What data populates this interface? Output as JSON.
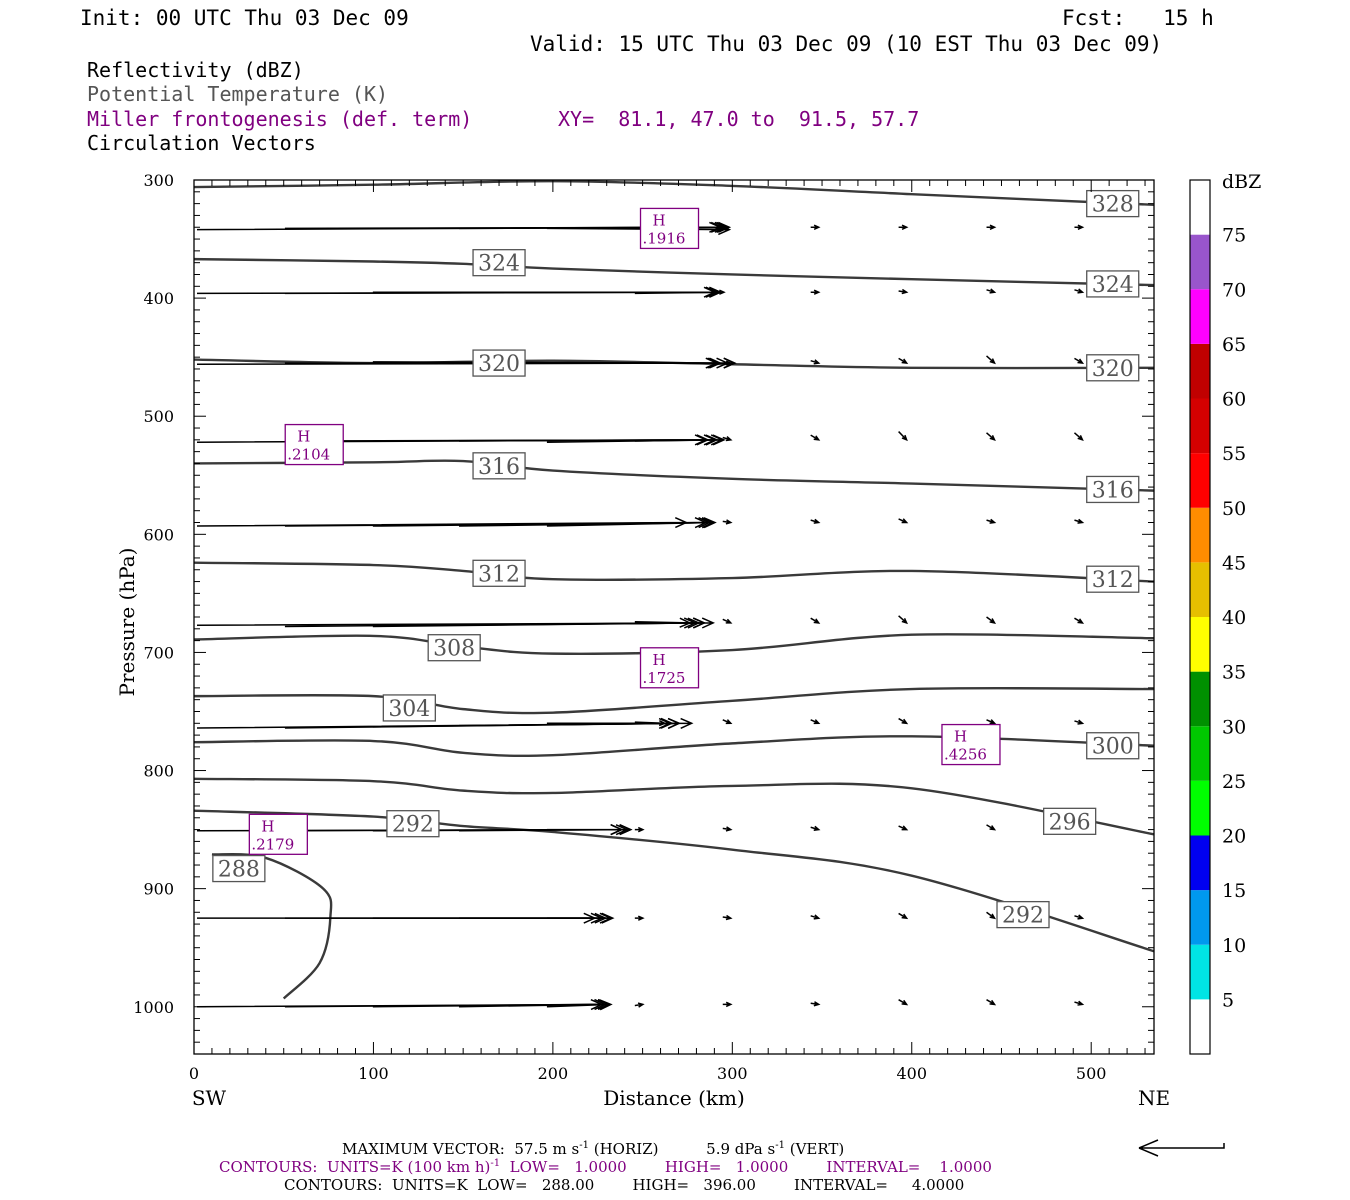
{
  "header": {
    "init": "Init: 00 UTC Thu 03 Dec 09",
    "fcst": "Fcst:   15 h",
    "valid": "Valid: 15 UTC Thu 03 Dec 09 (10 EST Thu 03 Dec 09)"
  },
  "legend": {
    "reflectivity": "Reflectivity (dBZ)",
    "potential_temperature": "Potential Temperature (K)",
    "frontogenesis": "Miller frontogenesis (def. term)",
    "xy": "XY=  81.1, 47.0 to  91.5, 57.7",
    "vectors": "Circulation Vectors"
  },
  "colors": {
    "theta_contour": "#3a3a3a",
    "frontogenesis": "#800080",
    "axis": "#000000"
  },
  "chart_data": {
    "type": "line",
    "xlabel": "Distance (km)",
    "ylabel": "Pressure (hPa)",
    "x_ticks": [
      "0",
      "100",
      "200",
      "300",
      "400",
      "500"
    ],
    "y_ticks": [
      "300",
      "400",
      "500",
      "600",
      "700",
      "800",
      "900",
      "1000"
    ],
    "xlim": [
      0,
      535
    ],
    "ylim": [
      1040,
      300
    ],
    "left_end_label": "SW",
    "right_end_label": "NE",
    "colorbar": {
      "title": "dBZ",
      "labels": [
        "5",
        "10",
        "15",
        "20",
        "25",
        "30",
        "35",
        "40",
        "45",
        "50",
        "55",
        "60",
        "65",
        "70",
        "75"
      ],
      "colors": [
        "#ffffff",
        "#00e5e5",
        "#0099ee",
        "#0000f0",
        "#00ff00",
        "#00c800",
        "#009000",
        "#ffff00",
        "#e6bf00",
        "#ff8c00",
        "#ff0000",
        "#d40000",
        "#c00000",
        "#ff00ff",
        "#9955cc",
        "#ffffff"
      ]
    },
    "theta_contours": [
      {
        "value": 328,
        "points": [
          [
            0,
            306
          ],
          [
            100,
            304
          ],
          [
            200,
            301
          ],
          [
            300,
            305
          ],
          [
            400,
            312
          ],
          [
            535,
            321
          ]
        ]
      },
      {
        "value": 324,
        "points": [
          [
            0,
            367
          ],
          [
            100,
            369
          ],
          [
            150,
            371
          ],
          [
            200,
            375
          ],
          [
            300,
            380
          ],
          [
            400,
            384
          ],
          [
            535,
            389
          ]
        ]
      },
      {
        "value": 320,
        "points": [
          [
            0,
            452
          ],
          [
            100,
            455
          ],
          [
            200,
            453
          ],
          [
            300,
            456
          ],
          [
            400,
            459
          ],
          [
            535,
            459
          ]
        ]
      },
      {
        "value": 316,
        "points": [
          [
            0,
            540
          ],
          [
            100,
            539
          ],
          [
            150,
            538
          ],
          [
            200,
            546
          ],
          [
            300,
            553
          ],
          [
            400,
            557
          ],
          [
            535,
            563
          ]
        ]
      },
      {
        "value": 312,
        "points": [
          [
            0,
            624
          ],
          [
            100,
            626
          ],
          [
            150,
            631
          ],
          [
            200,
            638
          ],
          [
            300,
            637
          ],
          [
            400,
            631
          ],
          [
            535,
            640
          ]
        ]
      },
      {
        "value": 308,
        "points": [
          [
            0,
            689
          ],
          [
            100,
            686
          ],
          [
            150,
            695
          ],
          [
            200,
            701
          ],
          [
            300,
            698
          ],
          [
            400,
            685
          ],
          [
            535,
            688
          ]
        ]
      },
      {
        "value": 304,
        "points": [
          [
            0,
            737
          ],
          [
            100,
            737
          ],
          [
            150,
            748
          ],
          [
            200,
            751
          ],
          [
            300,
            741
          ],
          [
            400,
            731
          ],
          [
            535,
            731
          ]
        ]
      },
      {
        "value": 300,
        "points": [
          [
            0,
            776
          ],
          [
            100,
            775
          ],
          [
            150,
            785
          ],
          [
            200,
            787
          ],
          [
            300,
            777
          ],
          [
            400,
            771
          ],
          [
            535,
            779
          ]
        ]
      },
      {
        "value": 296,
        "points": [
          [
            0,
            807
          ],
          [
            100,
            809
          ],
          [
            150,
            817
          ],
          [
            200,
            819
          ],
          [
            300,
            813
          ],
          [
            400,
            815
          ],
          [
            535,
            854
          ]
        ]
      },
      {
        "value": 292,
        "points": [
          [
            0,
            834
          ],
          [
            100,
            839
          ],
          [
            150,
            847
          ],
          [
            200,
            852
          ],
          [
            300,
            867
          ],
          [
            400,
            889
          ],
          [
            535,
            953
          ]
        ]
      },
      {
        "value": 288,
        "points": [
          [
            10,
            871
          ],
          [
            40,
            874
          ],
          [
            72,
            900
          ],
          [
            76,
            924
          ],
          [
            70,
            963
          ],
          [
            50,
            993
          ]
        ]
      }
    ],
    "contour_labels": [
      {
        "text": "328",
        "x": 512,
        "p": 320
      },
      {
        "text": "324",
        "x": 170,
        "p": 370
      },
      {
        "text": "324",
        "x": 512,
        "p": 388
      },
      {
        "text": "320",
        "x": 170,
        "p": 455
      },
      {
        "text": "320",
        "x": 512,
        "p": 459
      },
      {
        "text": "316",
        "x": 170,
        "p": 542
      },
      {
        "text": "316",
        "x": 512,
        "p": 562
      },
      {
        "text": "312",
        "x": 170,
        "p": 633
      },
      {
        "text": "312",
        "x": 512,
        "p": 638
      },
      {
        "text": "308",
        "x": 145,
        "p": 696
      },
      {
        "text": "304",
        "x": 120,
        "p": 747
      },
      {
        "text": "300",
        "x": 512,
        "p": 779
      },
      {
        "text": "296",
        "x": 488,
        "p": 843
      },
      {
        "text": "292",
        "x": 122,
        "p": 845
      },
      {
        "text": "292",
        "x": 462,
        "p": 922
      },
      {
        "text": "288",
        "x": 25,
        "p": 883
      }
    ],
    "frontogenesis_maxima": [
      {
        "label": "H",
        "value": ".1916",
        "x": 265,
        "p": 341
      },
      {
        "label": "H",
        "value": ".2104",
        "x": 67,
        "p": 524
      },
      {
        "label": "H",
        "value": ".1725",
        "x": 265,
        "p": 713
      },
      {
        "label": "H",
        "value": ".4256",
        "x": 433,
        "p": 778
      },
      {
        "label": "H",
        "value": ".2179",
        "x": 47,
        "p": 854
      }
    ],
    "circulation_vectors": [
      {
        "p": 342,
        "items": [
          [
            0,
            300,
            342,
            340
          ],
          [
            49,
            298,
            341,
            340
          ],
          [
            98,
            296,
            341,
            340
          ],
          [
            146,
            295,
            341,
            340
          ],
          [
            195,
            300,
            341,
            342
          ],
          [
            244,
            299,
            341,
            340
          ],
          [
            293,
            297,
            340,
            340
          ],
          [
            342,
            293,
            340,
            340
          ],
          [
            391,
            294,
            340,
            340
          ],
          [
            440,
            293,
            340,
            340
          ],
          [
            489,
            295,
            340,
            340
          ]
        ]
      },
      {
        "p": 396,
        "items": [
          [
            0,
            293,
            396,
            395
          ],
          [
            49,
            293,
            396,
            395
          ],
          [
            98,
            295,
            395,
            395
          ],
          [
            146,
            293,
            395,
            395
          ],
          [
            195,
            292,
            395,
            395
          ],
          [
            244,
            295,
            396,
            395
          ],
          [
            293,
            297,
            395,
            395
          ],
          [
            342,
            293,
            395,
            395
          ],
          [
            391,
            294,
            394,
            395
          ],
          [
            440,
            294,
            393,
            395
          ],
          [
            489,
            295,
            393,
            395
          ]
        ]
      },
      {
        "p": 455,
        "items": [
          [
            0,
            303,
            456,
            455
          ],
          [
            49,
            303,
            455,
            455
          ],
          [
            98,
            295,
            454,
            455
          ],
          [
            146,
            293,
            455,
            455
          ],
          [
            195,
            299,
            455,
            455
          ],
          [
            244,
            294,
            455,
            455
          ],
          [
            293,
            291,
            455,
            455
          ],
          [
            342,
            291,
            453,
            455
          ],
          [
            391,
            293,
            451,
            455
          ],
          [
            440,
            290,
            449,
            455
          ],
          [
            489,
            289,
            451,
            455
          ]
        ]
      },
      {
        "p": 521,
        "items": [
          [
            0,
            287,
            522,
            520
          ],
          [
            49,
            296,
            521,
            520
          ],
          [
            98,
            288,
            521,
            520
          ],
          [
            146,
            292,
            521,
            520
          ],
          [
            195,
            297,
            522,
            520
          ],
          [
            244,
            293,
            521,
            520
          ],
          [
            293,
            293,
            518,
            520
          ],
          [
            342,
            293,
            516,
            520
          ],
          [
            391,
            293,
            513,
            520
          ],
          [
            440,
            293,
            514,
            520
          ],
          [
            489,
            294,
            514,
            520
          ]
        ]
      },
      {
        "p": 592,
        "items": [
          [
            0,
            276,
            593,
            590
          ],
          [
            49,
            289,
            593,
            590
          ],
          [
            98,
            287,
            593,
            590
          ],
          [
            146,
            292,
            593,
            590
          ],
          [
            195,
            291,
            593,
            590
          ],
          [
            244,
            291,
            591,
            590
          ],
          [
            293,
            289,
            589,
            590
          ],
          [
            342,
            289,
            588,
            590
          ],
          [
            391,
            289,
            587,
            590
          ],
          [
            440,
            287,
            588,
            590
          ],
          [
            489,
            290,
            588,
            590
          ]
        ]
      },
      {
        "p": 677,
        "items": [
          [
            0,
            286,
            677,
            675
          ],
          [
            49,
            281,
            678,
            675
          ],
          [
            98,
            283,
            678,
            675
          ],
          [
            146,
            286,
            677,
            675
          ],
          [
            195,
            291,
            676,
            675
          ],
          [
            244,
            278,
            674,
            675
          ],
          [
            293,
            280,
            672,
            675
          ],
          [
            342,
            279,
            671,
            675
          ],
          [
            391,
            280,
            669,
            675
          ],
          [
            440,
            282,
            670,
            675
          ],
          [
            489,
            266,
            671,
            675
          ]
        ]
      },
      {
        "p": 763,
        "items": [
          [
            0,
            279,
            764,
            760
          ],
          [
            49,
            272,
            764,
            760
          ],
          [
            98,
            267,
            763,
            760
          ],
          [
            146,
            272,
            762,
            760
          ],
          [
            195,
            268,
            760,
            760
          ],
          [
            244,
            264,
            759,
            760
          ],
          [
            293,
            263,
            757,
            760
          ],
          [
            342,
            261,
            757,
            760
          ],
          [
            391,
            262,
            756,
            760
          ],
          [
            440,
            257,
            757,
            760
          ],
          [
            489,
            252,
            758,
            760
          ]
        ]
      },
      {
        "p": 852,
        "items": [
          [
            0,
            240,
            851,
            850
          ],
          [
            49,
            240,
            851,
            850
          ],
          [
            98,
            245,
            851,
            850
          ],
          [
            146,
            243,
            851,
            850
          ],
          [
            195,
            245,
            850,
            850
          ],
          [
            244,
            238,
            850,
            850
          ],
          [
            293,
            239,
            849,
            850
          ],
          [
            342,
            239,
            848,
            850
          ],
          [
            391,
            238,
            847,
            850
          ],
          [
            440,
            236,
            846,
            850
          ],
          [
            489,
            234,
            848,
            850
          ]
        ]
      },
      {
        "p": 925,
        "items": [
          [
            0,
            235,
            925,
            925
          ],
          [
            49,
            234,
            925,
            925
          ],
          [
            98,
            229,
            925,
            925
          ],
          [
            146,
            225,
            925,
            925
          ],
          [
            195,
            231,
            925,
            925
          ],
          [
            244,
            237,
            925,
            925
          ],
          [
            293,
            238,
            924,
            925
          ],
          [
            342,
            235,
            923,
            925
          ],
          [
            391,
            234,
            921,
            925
          ],
          [
            440,
            237,
            920,
            925
          ],
          [
            489,
            234,
            923,
            925
          ]
        ]
      },
      {
        "p": 1000,
        "items": [
          [
            0,
            233,
            1000,
            998
          ],
          [
            49,
            233,
            1000,
            998
          ],
          [
            98,
            231,
            1000,
            998
          ],
          [
            146,
            229,
            1000,
            998
          ],
          [
            195,
            234,
            1000,
            998
          ],
          [
            244,
            232,
            999,
            998
          ],
          [
            293,
            232,
            998,
            998
          ],
          [
            342,
            233,
            997,
            998
          ],
          [
            391,
            232,
            994,
            998
          ],
          [
            440,
            231,
            994,
            998
          ],
          [
            489,
            233,
            996,
            998
          ]
        ]
      }
    ]
  },
  "footer": {
    "max_vector": "MAXIMUM VECTOR:  57.5 m s",
    "max_vector_sup": "-1",
    "max_vector_mid": " (HORIZ)          5.9 dPa s",
    "max_vector_sup2": "-1",
    "max_vector_end": " (VERT)",
    "contours_fg_pre": "CONTOURS:  UNITS=K (100 km h)",
    "contours_fg_sup": "-1",
    "contours_fg_post": "  LOW=   1.0000        HIGH=   1.0000        INTERVAL=    1.0000",
    "contours_theta": "CONTOURS:  UNITS=K  LOW=   288.00        HIGH=   396.00        INTERVAL=     4.0000"
  }
}
